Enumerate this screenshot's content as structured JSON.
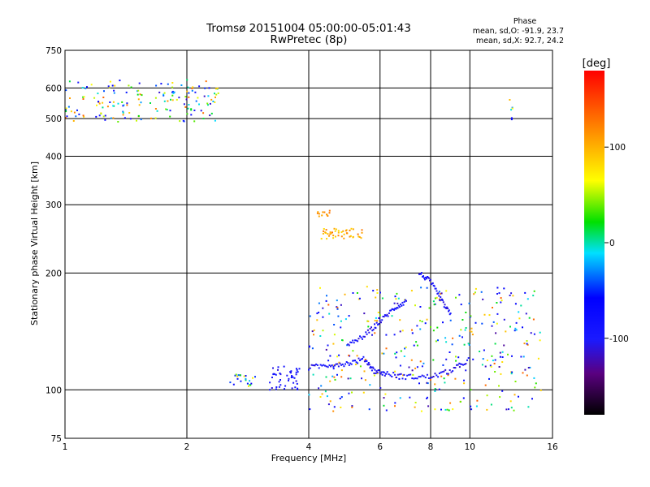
{
  "chart_data": {
    "type": "scatter",
    "title": "Tromsø 20151004 05:00:00-05:01:43",
    "subtitle": "RwPretec (8p)",
    "xlabel": "Frequency [MHz]",
    "ylabel": "Stationary phase Virtual Height [km]",
    "x_scale": "log",
    "y_scale": "log",
    "xlim": [
      1,
      16
    ],
    "ylim": [
      75,
      750
    ],
    "x_ticks": [
      1,
      2,
      4,
      6,
      8,
      10,
      16
    ],
    "y_ticks": [
      75,
      100,
      200,
      300,
      400,
      500,
      600,
      750
    ],
    "grid": true,
    "colorbar": {
      "label": "[deg]",
      "range": [
        -180,
        180
      ],
      "ticks": [
        100,
        0,
        -100
      ]
    },
    "stats": {
      "heading": "Phase",
      "line_o": "mean, sd,O: -91.9, 23.7",
      "line_x": "mean, sd,X:  92.7, 24.2"
    },
    "clusters": [
      {
        "f": [
          1.0,
          2.4
        ],
        "h": [
          490,
          630
        ],
        "phase": [
          -120,
          140
        ],
        "n": 170
      },
      {
        "f": [
          2.55,
          2.95
        ],
        "h": [
          102,
          110
        ],
        "phase": [
          -110,
          100
        ],
        "n": 22
      },
      {
        "f": [
          3.2,
          3.8
        ],
        "h": [
          100,
          115
        ],
        "phase": [
          -115,
          -85
        ],
        "n": 45
      },
      {
        "f": [
          4.3,
          5.5
        ],
        "h": [
          245,
          262
        ],
        "phase": [
          80,
          130
        ],
        "n": 45
      },
      {
        "f": [
          4.2,
          4.6
        ],
        "h": [
          278,
          290
        ],
        "phase": [
          100,
          130
        ],
        "n": 12
      },
      {
        "f": [
          4.0,
          15.0
        ],
        "h": [
          88,
          185
        ],
        "phase": [
          -130,
          140
        ],
        "n": 380
      },
      {
        "f": [
          12.4,
          12.8
        ],
        "h": [
          495,
          580
        ],
        "phase": [
          -100,
          100
        ],
        "n": 6
      }
    ],
    "curves": [
      {
        "name": "",
        "phase": -100,
        "points": [
          [
            4.0,
            114
          ],
          [
            4.5,
            116
          ],
          [
            5.0,
            117
          ],
          [
            5.5,
            120
          ],
          [
            5.8,
            112
          ],
          [
            6.2,
            110
          ],
          [
            7.0,
            108
          ],
          [
            8.0,
            108
          ],
          [
            9.0,
            112
          ],
          [
            10.0,
            120
          ]
        ]
      },
      {
        "name": "",
        "phase": -100,
        "points": [
          [
            5.0,
            130
          ],
          [
            5.5,
            138
          ],
          [
            6.0,
            150
          ],
          [
            6.5,
            162
          ],
          [
            7.0,
            170
          ]
        ]
      },
      {
        "name": "",
        "phase": -100,
        "points": [
          [
            7.5,
            200
          ],
          [
            8.0,
            190
          ],
          [
            8.5,
            170
          ],
          [
            9.0,
            155
          ]
        ]
      }
    ]
  }
}
